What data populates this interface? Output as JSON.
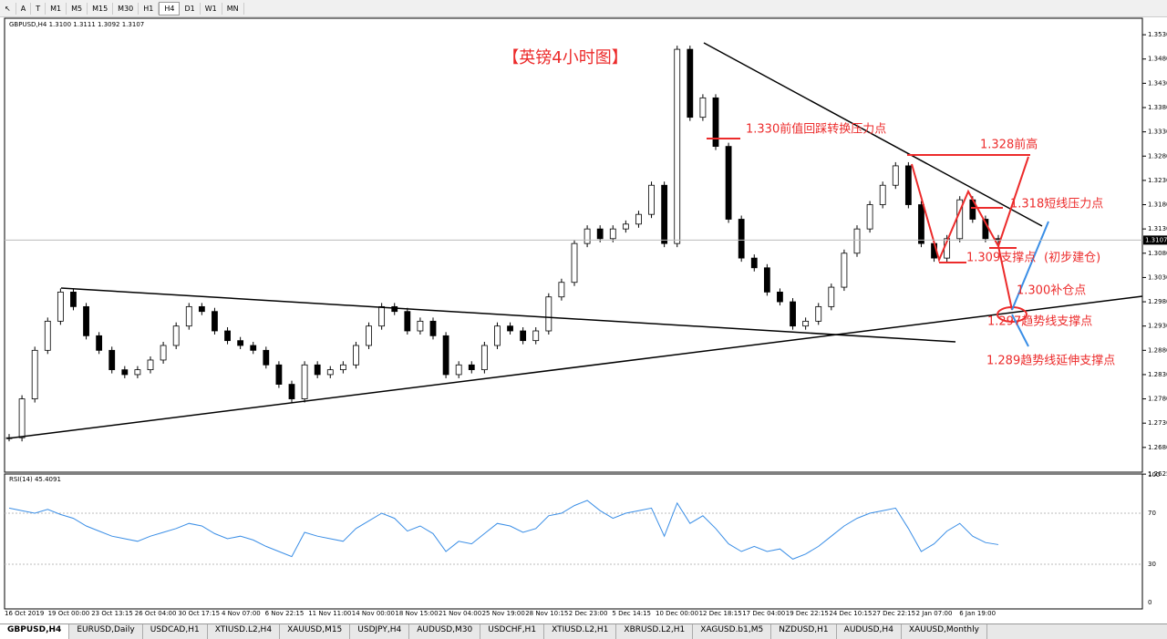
{
  "toolbar": {
    "timeframes": [
      "M1",
      "M5",
      "M15",
      "M30",
      "H1",
      "H4",
      "D1",
      "W1",
      "MN"
    ],
    "active": "H4"
  },
  "chart_data": {
    "type": "candlestick",
    "header": "GBPUSD,H4  1.3100 1.3111 1.3092 1.3107",
    "title": "【英镑4小时图】",
    "current_price": {
      "value": 1.3107,
      "label": "1.3107"
    },
    "ylim": [
      1.2629,
      1.3564
    ],
    "yticks": [
      {
        "value": 1.353,
        "label": "1.3530"
      },
      {
        "value": 1.348,
        "label": "1.3480"
      },
      {
        "value": 1.343,
        "label": "1.3430"
      },
      {
        "value": 1.338,
        "label": "1.3380"
      },
      {
        "value": 1.333,
        "label": "1.3330"
      },
      {
        "value": 1.328,
        "label": "1.3280"
      },
      {
        "value": 1.323,
        "label": "1.3230"
      },
      {
        "value": 1.318,
        "label": "1.3180"
      },
      {
        "value": 1.313,
        "label": "1.3130"
      },
      {
        "value": 1.308,
        "label": "1.3080"
      },
      {
        "value": 1.303,
        "label": "1.3030"
      },
      {
        "value": 1.298,
        "label": "1.2980"
      },
      {
        "value": 1.293,
        "label": "1.2930"
      },
      {
        "value": 1.288,
        "label": "1.2880"
      },
      {
        "value": 1.283,
        "label": "1.2830"
      },
      {
        "value": 1.278,
        "label": "1.2780"
      },
      {
        "value": 1.273,
        "label": "1.2730"
      },
      {
        "value": 1.268,
        "label": "1.2680"
      },
      {
        "value": 1.2625,
        "label": "1.2625"
      }
    ],
    "time_labels": [
      "16 Oct 2019",
      "19 Oct 00:00",
      "23 Oct 13:15",
      "26 Oct 04:00",
      "30 Oct 17:15",
      "4 Nov 07:00",
      "6 Nov 22:15",
      "11 Nov 11:00",
      "14 Nov 00:00",
      "18 Nov 15:00",
      "21 Nov 04:00",
      "25 Nov 19:00",
      "28 Nov 10:15",
      "2 Dec 23:00",
      "5 Dec 14:15",
      "10 Dec 00:00",
      "12 Dec 18:15",
      "17 Dec 04:00",
      "19 Dec 22:15",
      "24 Dec 10:15",
      "27 Dec 22:15",
      "2 Jan 07:00",
      "6 Jan 19:00"
    ],
    "closes": [
      1.27,
      1.278,
      1.288,
      1.294,
      1.3,
      1.297,
      1.291,
      1.288,
      1.284,
      1.283,
      1.284,
      1.286,
      1.289,
      1.293,
      1.297,
      1.296,
      1.292,
      1.29,
      1.289,
      1.288,
      1.285,
      1.281,
      1.278,
      1.285,
      1.283,
      1.284,
      1.285,
      1.289,
      1.293,
      1.297,
      1.296,
      1.292,
      1.294,
      1.291,
      1.283,
      1.285,
      1.284,
      1.289,
      1.293,
      1.292,
      1.29,
      1.292,
      1.299,
      1.302,
      1.31,
      1.313,
      1.311,
      1.313,
      1.314,
      1.316,
      1.322,
      1.31,
      1.35,
      1.336,
      1.34,
      1.33,
      1.315,
      1.307,
      1.305,
      1.3,
      1.298,
      1.293,
      1.294,
      1.297,
      1.301,
      1.308,
      1.313,
      1.318,
      1.322,
      1.326,
      1.318,
      1.31,
      1.307,
      1.311,
      1.319,
      1.315,
      1.311,
      1.3107
    ],
    "annotations": [
      "1.330前值回踩转换压力点",
      "1.328前高",
      "1.318短线压力点",
      "1.309支撑点",
      "(初步建仓)",
      "1.300补仓点",
      "1.297趋势线支撑点",
      "1.289趋势线延伸支撑点"
    ],
    "rsi": {
      "header": "RSI(14) 45.4091",
      "ylim": [
        0,
        100
      ],
      "yticks": [
        100,
        70,
        30,
        0
      ],
      "values": [
        74,
        72,
        70,
        73,
        69,
        66,
        60,
        56,
        52,
        50,
        48,
        52,
        55,
        58,
        62,
        60,
        54,
        50,
        52,
        49,
        44,
        40,
        36,
        55,
        52,
        50,
        48,
        58,
        64,
        70,
        66,
        56,
        60,
        54,
        40,
        48,
        46,
        54,
        62,
        60,
        55,
        58,
        68,
        70,
        76,
        80,
        72,
        66,
        70,
        72,
        74,
        52,
        78,
        62,
        68,
        58,
        46,
        40,
        44,
        40,
        42,
        34,
        38,
        44,
        52,
        60,
        66,
        70,
        72,
        74,
        58,
        40,
        46,
        56,
        62,
        52,
        47,
        45.4
      ]
    }
  },
  "tabs": [
    "GBPUSD,H4",
    "EURUSD,Daily",
    "USDCAD,H1",
    "XTIUSD.L2,H4",
    "XAUUSD,M15",
    "USDJPY,H4",
    "AUDUSD,M30",
    "USDCHF,H1",
    "XTIUSD.L2,H1",
    "XBRUSD.L2,H1",
    "XAGUSD.b1,M5",
    "NZDUSD,H1",
    "AUDUSD,H4",
    "XAUUSD,Monthly"
  ]
}
